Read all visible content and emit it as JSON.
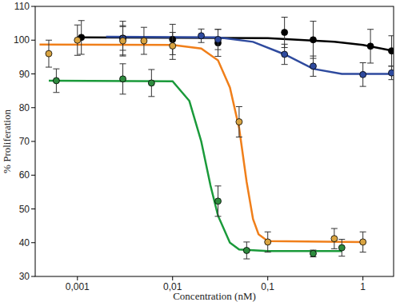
{
  "chart_data": {
    "type": "scatter",
    "x_label": "Concentration (nM)",
    "y_label": "% Proliferation",
    "log": "x",
    "grid": false,
    "xlim": [
      0.00036,
      2.1
    ],
    "ylim": [
      30,
      110
    ],
    "xticks": [
      {
        "value": 0.001,
        "label": "0,001"
      },
      {
        "value": 0.01,
        "label": "0,01"
      },
      {
        "value": 0.1,
        "label": "0,1"
      },
      1
    ],
    "yticks": [
      30,
      40,
      50,
      60,
      70,
      80,
      90,
      100,
      110
    ],
    "series": [
      {
        "type": "line",
        "color": "#000000",
        "line_style": "solid",
        "x": [
          0.001,
          0.1,
          0.5,
          1,
          2.1
        ],
        "values": [
          100.8,
          100.6,
          99.5,
          98.6,
          96.8
        ]
      },
      {
        "type": "line",
        "color": "#2e4a9e",
        "line_style": "solid",
        "x": [
          0.002,
          0.03,
          0.07,
          0.15,
          0.3,
          0.6,
          2.0
        ],
        "values": [
          101,
          100.8,
          99.5,
          95.8,
          91.5,
          90,
          90
        ]
      },
      {
        "type": "line",
        "color": "#f07f1a",
        "line_style": "solid",
        "x": [
          0.0004,
          0.01,
          0.02,
          0.03,
          0.04,
          0.05,
          0.06,
          0.07,
          0.08,
          0.1,
          1.0
        ],
        "values": [
          98.7,
          98.6,
          97.5,
          94,
          86,
          74,
          58,
          47,
          42.5,
          40.5,
          40.2
        ]
      },
      {
        "type": "line",
        "color": "#1a9a3a",
        "line_style": "solid",
        "x": [
          0.0005,
          0.01,
          0.015,
          0.02,
          0.025,
          0.03,
          0.04,
          0.05,
          0.1,
          0.6
        ],
        "values": [
          88,
          87.8,
          82,
          70,
          57,
          48,
          40,
          38,
          37.5,
          37.5
        ]
      },
      {
        "type": "scatter",
        "color": "#000000",
        "marker": "circle",
        "x": [
          0.0011,
          0.003,
          0.01,
          0.03,
          0.15,
          0.3,
          1.2,
          2.0
        ],
        "values": [
          100.8,
          100.6,
          100.2,
          99.2,
          102.3,
          100.1,
          98.2,
          96.8
        ],
        "errors": [
          5,
          5,
          4.5,
          4,
          4.5,
          5.5,
          5,
          4.5
        ]
      },
      {
        "type": "scatter",
        "color": "#2e4a9e",
        "marker": "circle",
        "x": [
          0.003,
          0.02,
          0.03,
          0.15,
          0.3,
          1.0,
          2.0
        ],
        "values": [
          100.5,
          101.3,
          100.2,
          95.8,
          92.3,
          89.8,
          90.3
        ],
        "errors": [
          3.5,
          2,
          3,
          3,
          3,
          3.5,
          2
        ]
      },
      {
        "type": "scatter",
        "color": "#d9a441",
        "marker": "circle",
        "x": [
          0.0005,
          0.001,
          0.003,
          0.005,
          0.01,
          0.05,
          0.1,
          0.5,
          1.0
        ],
        "values": [
          96,
          100,
          99.8,
          99.8,
          98.3,
          75.8,
          40.2,
          41.2,
          40.2
        ],
        "errors": [
          4,
          4.5,
          4.5,
          4,
          4,
          4.5,
          3,
          3,
          3
        ]
      },
      {
        "type": "scatter",
        "color": "#2e8b3e",
        "marker": "circle",
        "x": [
          0.0006,
          0.003,
          0.006,
          0.03,
          0.06,
          0.3,
          0.6
        ],
        "values": [
          88,
          88.5,
          87.3,
          52.3,
          37.7,
          36.8,
          38.5
        ],
        "errors": [
          3.5,
          4.5,
          4,
          4.5,
          2.5,
          1,
          2.5
        ]
      }
    ]
  }
}
